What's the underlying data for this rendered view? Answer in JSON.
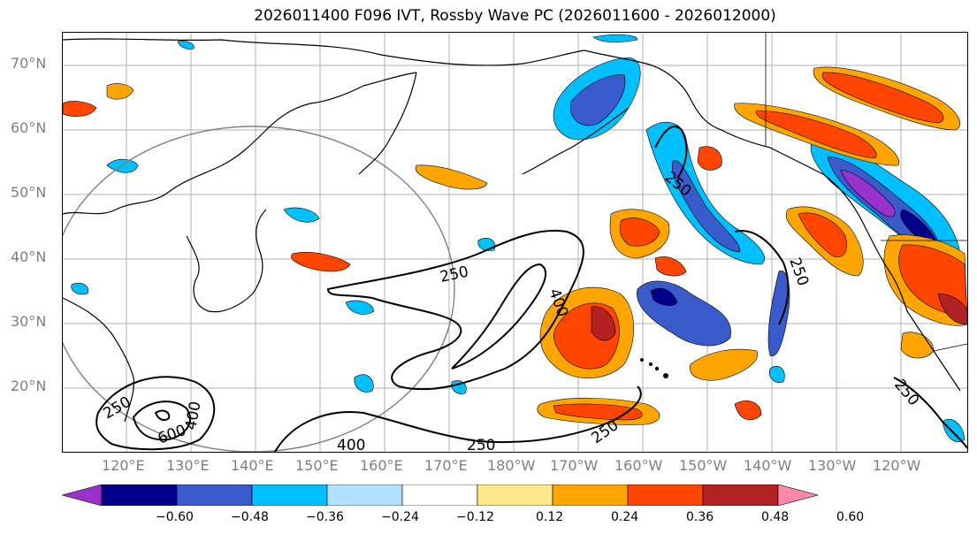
{
  "title": "2026011400 F096 IVT, Rossby Wave PC (2026011600 - 2026012000)",
  "map": {
    "lat_labels": [
      "70°N",
      "60°N",
      "50°N",
      "40°N",
      "30°N",
      "20°N"
    ],
    "lon_labels": [
      "120°E",
      "130°E",
      "140°E",
      "150°E",
      "160°E",
      "170°E",
      "180°W",
      "170°W",
      "160°W",
      "150°W",
      "140°W",
      "130°W",
      "120°W"
    ],
    "contour_labels": [
      "250",
      "250",
      "250",
      "250",
      "250",
      "250",
      "250",
      "400",
      "400",
      "400",
      "600"
    ]
  },
  "colorbar": {
    "tick_labels": [
      "−0.60",
      "−0.48",
      "−0.36",
      "−0.24",
      "−0.12",
      "0.12",
      "0.24",
      "0.36",
      "0.48",
      "0.60"
    ],
    "colors": [
      "#9932cc",
      "#00008b",
      "#3a5bcc",
      "#00bfff",
      "#b0e2ff",
      "#ffffff",
      "#ffe98a",
      "#ffa500",
      "#ff4500",
      "#b22222",
      "#ff88aa"
    ]
  }
}
